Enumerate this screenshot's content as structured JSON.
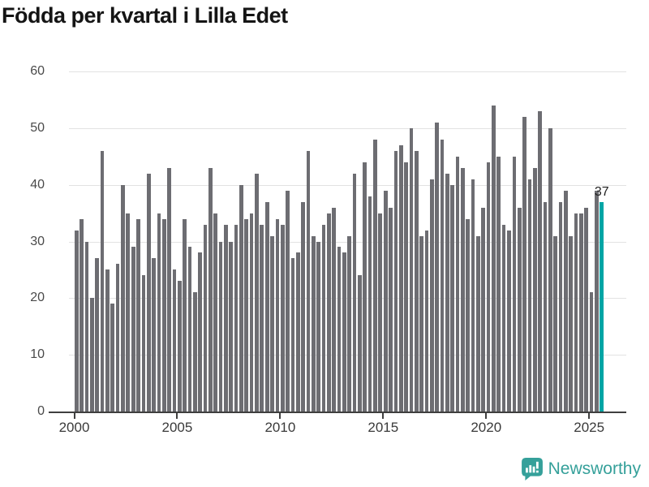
{
  "header": {
    "title": "Födda per kvartal i Lilla Edet"
  },
  "chart_data": {
    "type": "bar",
    "title": "Födda per kvartal i Lilla Edet",
    "xlabel": "",
    "ylabel": "",
    "ylim": [
      0,
      60
    ],
    "grid": true,
    "y_ticks": [
      0,
      10,
      20,
      30,
      40,
      50,
      60
    ],
    "x_ticks": [
      {
        "label": "2000",
        "bar_index": 0
      },
      {
        "label": "2005",
        "bar_index": 20
      },
      {
        "label": "2010",
        "bar_index": 40
      },
      {
        "label": "2015",
        "bar_index": 60
      },
      {
        "label": "2020",
        "bar_index": 80
      },
      {
        "label": "2025",
        "bar_index": 100
      }
    ],
    "categories": [
      "2000Q1",
      "2000Q2",
      "2000Q3",
      "2000Q4",
      "2001Q1",
      "2001Q2",
      "2001Q3",
      "2001Q4",
      "2002Q1",
      "2002Q2",
      "2002Q3",
      "2002Q4",
      "2003Q1",
      "2003Q2",
      "2003Q3",
      "2003Q4",
      "2004Q1",
      "2004Q2",
      "2004Q3",
      "2004Q4",
      "2005Q1",
      "2005Q2",
      "2005Q3",
      "2005Q4",
      "2006Q1",
      "2006Q2",
      "2006Q3",
      "2006Q4",
      "2007Q1",
      "2007Q2",
      "2007Q3",
      "2007Q4",
      "2008Q1",
      "2008Q2",
      "2008Q3",
      "2008Q4",
      "2009Q1",
      "2009Q2",
      "2009Q3",
      "2009Q4",
      "2010Q1",
      "2010Q2",
      "2010Q3",
      "2010Q4",
      "2011Q1",
      "2011Q2",
      "2011Q3",
      "2011Q4",
      "2012Q1",
      "2012Q2",
      "2012Q3",
      "2012Q4",
      "2013Q1",
      "2013Q2",
      "2013Q3",
      "2013Q4",
      "2014Q1",
      "2014Q2",
      "2014Q3",
      "2014Q4",
      "2015Q1",
      "2015Q2",
      "2015Q3",
      "2015Q4",
      "2016Q1",
      "2016Q2",
      "2016Q3",
      "2016Q4",
      "2017Q1",
      "2017Q2",
      "2017Q3",
      "2017Q4",
      "2018Q1",
      "2018Q2",
      "2018Q3",
      "2018Q4",
      "2019Q1",
      "2019Q2",
      "2019Q3",
      "2019Q4",
      "2020Q1",
      "2020Q2",
      "2020Q3",
      "2020Q4",
      "2021Q1",
      "2021Q2",
      "2021Q3",
      "2021Q4",
      "2022Q1",
      "2022Q2",
      "2022Q3",
      "2022Q4",
      "2023Q1",
      "2023Q2",
      "2023Q3",
      "2023Q4",
      "2024Q1",
      "2024Q2",
      "2024Q3",
      "2024Q4",
      "2025Q1",
      "2025Q2",
      "2025Q3"
    ],
    "values": [
      32,
      34,
      30,
      20,
      27,
      46,
      25,
      19,
      26,
      40,
      35,
      29,
      34,
      24,
      42,
      27,
      35,
      34,
      43,
      25,
      23,
      34,
      29,
      21,
      28,
      33,
      43,
      35,
      30,
      33,
      30,
      33,
      40,
      34,
      35,
      42,
      33,
      37,
      31,
      34,
      33,
      39,
      27,
      28,
      37,
      46,
      31,
      30,
      33,
      35,
      36,
      29,
      28,
      31,
      42,
      24,
      44,
      38,
      48,
      35,
      39,
      36,
      46,
      47,
      44,
      50,
      46,
      31,
      32,
      41,
      51,
      48,
      42,
      40,
      45,
      43,
      34,
      41,
      31,
      36,
      44,
      54,
      45,
      33,
      32,
      45,
      36,
      52,
      41,
      43,
      53,
      37,
      50,
      31,
      37,
      39,
      31,
      35,
      35,
      36,
      21,
      39,
      37
    ],
    "bar_color": "#6d6d72",
    "highlight_color": "#00a5a5",
    "legend": "none",
    "annotation": {
      "text": "37",
      "target": "2025Q3"
    }
  },
  "footer": {
    "brand": "Newsworthy",
    "brand_color": "#35a09a",
    "logo_icon": "bar-chart-speech-bubble-icon"
  }
}
